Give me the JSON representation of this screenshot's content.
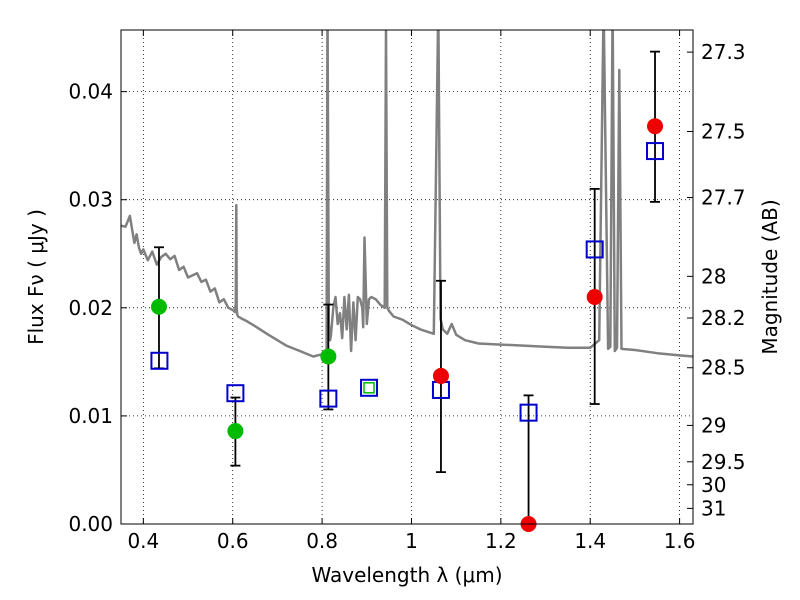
{
  "chart_data": {
    "type": "scatter",
    "xlabel": "Wavelength  λ (μm)",
    "ylabel": "Flux  Fν  ( μJy )",
    "y2label": "Magnitude (AB)",
    "xlim": [
      0.35,
      1.63
    ],
    "ylim": [
      0.0,
      0.0457
    ],
    "x_ticks": [
      0.4,
      0.6,
      0.8,
      1.0,
      1.2,
      1.4,
      1.6
    ],
    "x_tick_labels": [
      "0.4",
      "0.6",
      "0.8",
      "1",
      "1.2",
      "1.4",
      "1.6"
    ],
    "y_ticks": [
      0.0,
      0.01,
      0.02,
      0.03,
      0.04
    ],
    "y_tick_labels": [
      "0.00",
      "0.01",
      "0.02",
      "0.03",
      "0.04"
    ],
    "mag_ticks": [
      27.3,
      27.5,
      27.7,
      28,
      28.2,
      28.5,
      29,
      29.5,
      30,
      31
    ],
    "mag_tick_labels": [
      "27.3",
      "27.5",
      "27.7",
      "28",
      "28.2",
      "28.5",
      "29",
      "29.5",
      "30",
      "31"
    ],
    "grid": true,
    "colors": {
      "model": "#808080",
      "green": "#00bb00",
      "red": "#ee0000",
      "model_box": "#0000cc",
      "errorbar": "#000000"
    },
    "model_spectrum": {
      "x": [
        0.35,
        0.36,
        0.37,
        0.375,
        0.38,
        0.385,
        0.39,
        0.395,
        0.4,
        0.41,
        0.42,
        0.43,
        0.44,
        0.45,
        0.46,
        0.47,
        0.48,
        0.49,
        0.5,
        0.51,
        0.52,
        0.53,
        0.54,
        0.55,
        0.56,
        0.57,
        0.58,
        0.59,
        0.6,
        0.605,
        0.607,
        0.608,
        0.609,
        0.61,
        0.612,
        0.62,
        0.63,
        0.65,
        0.68,
        0.7,
        0.72,
        0.75,
        0.78,
        0.8,
        0.81,
        0.812,
        0.815,
        0.818,
        0.82,
        0.825,
        0.83,
        0.835,
        0.84,
        0.845,
        0.85,
        0.855,
        0.86,
        0.865,
        0.87,
        0.875,
        0.88,
        0.885,
        0.89,
        0.892,
        0.895,
        0.9,
        0.905,
        0.91,
        0.92,
        0.93,
        0.94,
        0.943,
        0.946,
        0.95,
        0.96,
        0.98,
        1.0,
        1.02,
        1.05,
        1.06,
        1.065,
        1.07,
        1.08,
        1.09,
        1.1,
        1.12,
        1.15,
        1.2,
        1.25,
        1.3,
        1.35,
        1.4,
        1.42,
        1.43,
        1.44,
        1.445,
        1.45,
        1.455,
        1.46,
        1.465,
        1.47,
        1.5,
        1.55,
        1.6,
        1.63
      ],
      "y": [
        0.0276,
        0.0275,
        0.0285,
        0.0272,
        0.026,
        0.0268,
        0.0256,
        0.025,
        0.0254,
        0.0244,
        0.0252,
        0.024,
        0.0247,
        0.025,
        0.0245,
        0.0248,
        0.0235,
        0.0238,
        0.0228,
        0.023,
        0.0232,
        0.0224,
        0.0226,
        0.0215,
        0.0218,
        0.0205,
        0.0208,
        0.02,
        0.0198,
        0.0196,
        0.0205,
        0.0295,
        0.02,
        0.0194,
        0.0192,
        0.019,
        0.0188,
        0.0183,
        0.0175,
        0.017,
        0.0165,
        0.016,
        0.0155,
        0.0157,
        0.016,
        0.048,
        0.0185,
        0.017,
        0.0175,
        0.02,
        0.021,
        0.0185,
        0.0195,
        0.0172,
        0.021,
        0.018,
        0.0212,
        0.016,
        0.0205,
        0.017,
        0.021,
        0.0208,
        0.02,
        0.0182,
        0.0265,
        0.0185,
        0.0208,
        0.021,
        0.0208,
        0.0203,
        0.02,
        0.046,
        0.02,
        0.0197,
        0.0192,
        0.0189,
        0.0184,
        0.018,
        0.0176,
        0.048,
        0.019,
        0.018,
        0.0176,
        0.0185,
        0.0175,
        0.017,
        0.0167,
        0.0166,
        0.0165,
        0.0164,
        0.0163,
        0.0163,
        0.017,
        0.048,
        0.0162,
        0.0164,
        0.048,
        0.016,
        0.0163,
        0.042,
        0.0162,
        0.0161,
        0.0158,
        0.0156,
        0.0155
      ]
    },
    "model_photometry": {
      "name": "",
      "marker": "open-square",
      "points": [
        {
          "x": 0.436,
          "y": 0.0151
        },
        {
          "x": 0.606,
          "y": 0.0121
        },
        {
          "x": 0.814,
          "y": 0.0116
        },
        {
          "x": 1.066,
          "y": 0.0124
        },
        {
          "x": 1.262,
          "y": 0.0103
        },
        {
          "x": 1.41,
          "y": 0.0254
        },
        {
          "x": 1.545,
          "y": 0.0345
        }
      ]
    },
    "observed": [
      {
        "x": 0.435,
        "y": 0.0201,
        "yerr_low": 0.0144,
        "yerr_high": 0.0256,
        "color": "green"
      },
      {
        "x": 0.606,
        "y": 0.0086,
        "yerr_low": 0.0054,
        "yerr_high": 0.0117,
        "color": "green"
      },
      {
        "x": 0.814,
        "y": 0.0155,
        "yerr_low": 0.0106,
        "yerr_high": 0.0203,
        "color": "green"
      },
      {
        "x": 1.066,
        "y": 0.0137,
        "yerr_low": 0.0048,
        "yerr_high": 0.0225,
        "color": "red"
      },
      {
        "x": 1.262,
        "y": 0.0,
        "yerr_low": 0.0,
        "yerr_high": 0.0119,
        "color": "red"
      },
      {
        "x": 1.41,
        "y": 0.021,
        "yerr_low": 0.0111,
        "yerr_high": 0.031,
        "color": "red"
      },
      {
        "x": 1.545,
        "y": 0.0368,
        "yerr_low": 0.0298,
        "yerr_high": 0.0437,
        "color": "red"
      }
    ],
    "extra_square": {
      "x": 0.905,
      "y": 0.0126,
      "outer_color": "model_box",
      "inner_color": "green"
    }
  }
}
